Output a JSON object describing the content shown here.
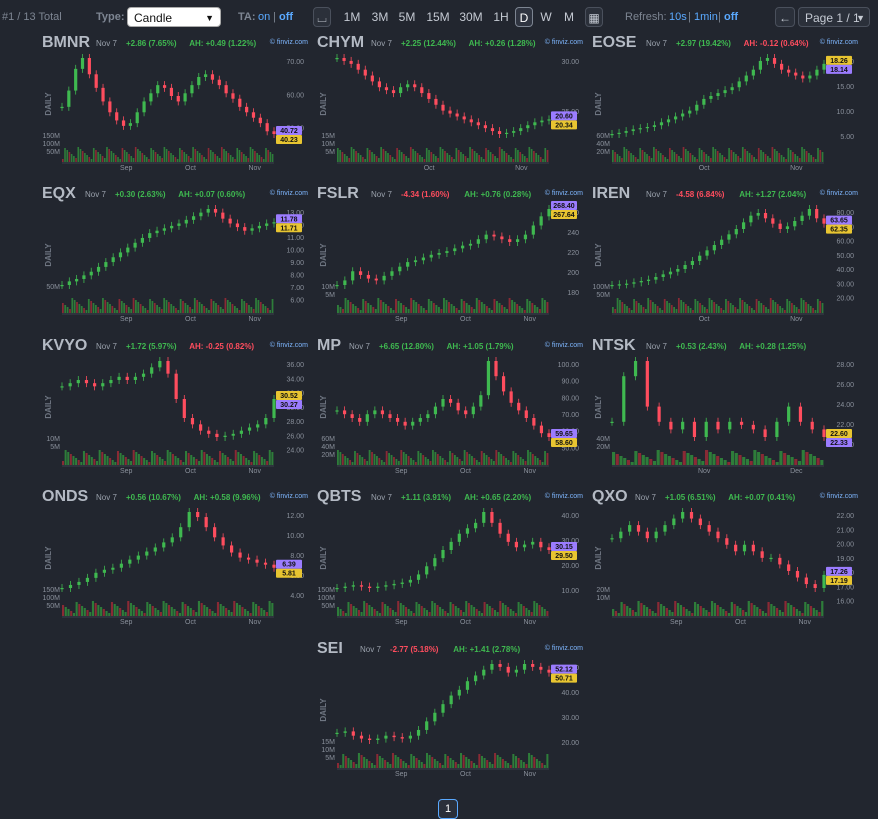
{
  "toolbar": {
    "total": "#1 / 13 Total",
    "type_label": "Type:",
    "type_value": "Candle",
    "ta_label": "TA:",
    "ta_on": "on",
    "ta_sep": "|",
    "ta_off": "off",
    "timeframes": [
      "1M",
      "3M",
      "5M",
      "15M",
      "30M",
      "1H",
      "D",
      "W",
      "M"
    ],
    "active_timeframe": "D",
    "refresh_label": "Refresh:",
    "refresh_opts": [
      "10s",
      "1min",
      "off"
    ],
    "page": "Page 1 / 1"
  },
  "colors": {
    "up": "#3fb950",
    "down": "#ff4d5e",
    "accent": "#5aa9ff",
    "bg": "#22262f",
    "grid": "#3a404b"
  },
  "icons": {
    "chart_toggle": "candle-toggle-icon",
    "calendar": "calendar-icon",
    "back": "arrow-left-icon",
    "dropdown": "chevron-down-icon"
  },
  "charts": [
    {
      "ticker": "BMNR",
      "date": "Nov 7",
      "change": "+2.86 (7.65%)",
      "change_dir": "up",
      "ah": "AH: +0.49 (1.22%)",
      "ah_dir": "up",
      "source": "© finviz.com",
      "ylabels": [
        "70.00",
        "60.00",
        "50.00"
      ],
      "vol_labels": [
        "150M",
        "100M",
        "50M"
      ],
      "price_tags": [
        {
          "text": "40.72",
          "color": "#9b7cff"
        },
        {
          "text": "40.23",
          "color": "#e8c531"
        }
      ],
      "xlabels": [
        "Sep",
        "Oct",
        "Nov"
      ],
      "series": [
        50,
        56,
        64,
        68,
        62,
        57,
        52,
        48,
        45,
        43,
        44,
        48,
        52,
        55,
        58,
        57,
        54,
        52,
        55,
        58,
        61,
        62,
        60,
        58,
        55,
        53,
        50,
        48,
        46,
        44,
        41,
        40
      ]
    },
    {
      "ticker": "CHYM",
      "date": "Nov 7",
      "change": "+2.25 (12.44%)",
      "change_dir": "up",
      "ah": "AH: +0.26 (1.28%)",
      "ah_dir": "up",
      "source": "© finviz.com",
      "ylabels": [
        "30.00",
        "25.00"
      ],
      "vol_labels": [
        "15M",
        "10M",
        "5M"
      ],
      "price_tags": [
        {
          "text": "20.60",
          "color": "#9b7cff"
        },
        {
          "text": "20.34",
          "color": "#e8c531"
        }
      ],
      "xlabels": [
        "Oct",
        "Nov"
      ],
      "series": [
        31,
        30.5,
        30,
        29,
        28,
        27,
        26,
        25.5,
        25,
        26,
        26.5,
        26,
        25,
        24,
        23,
        22,
        21.5,
        21,
        20.5,
        20,
        19.5,
        19,
        18.5,
        18,
        18.2,
        18.5,
        19,
        19.5,
        20,
        20.3,
        20.5
      ]
    },
    {
      "ticker": "EOSE",
      "date": "Nov 7",
      "change": "+2.97 (19.42%)",
      "change_dir": "up",
      "ah": "AH: -0.12 (0.64%)",
      "ah_dir": "down",
      "source": "© finviz.com",
      "ylabels": [
        "20.00",
        "15.00",
        "10.00",
        "5.00"
      ],
      "vol_labels": [
        "60M",
        "40M",
        "20M"
      ],
      "price_tags": [
        {
          "text": "18.26",
          "color": "#e8c531"
        },
        {
          "text": "18.14",
          "color": "#9b7cff"
        }
      ],
      "xlabels": [
        "Oct",
        "Nov"
      ],
      "series": [
        6,
        6.2,
        6.5,
        6.8,
        7,
        7.2,
        7.5,
        8,
        8.5,
        9,
        9.5,
        10,
        11,
        12,
        12.5,
        13,
        13.5,
        14,
        15,
        16,
        17,
        18.5,
        19,
        18,
        17,
        16.5,
        16,
        15.5,
        16,
        17,
        18
      ]
    },
    {
      "ticker": "EQX",
      "date": "Nov 7",
      "change": "+0.30 (2.63%)",
      "change_dir": "up",
      "ah": "AH: +0.07 (0.60%)",
      "ah_dir": "up",
      "source": "© finviz.com",
      "ylabels": [
        "13.00",
        "12.00",
        "11.00",
        "10.00",
        "9.00",
        "8.00",
        "7.00",
        "6.00"
      ],
      "vol_labels": [
        "50M"
      ],
      "price_tags": [
        {
          "text": "11.78",
          "color": "#9b7cff"
        },
        {
          "text": "11.71",
          "color": "#e8c531"
        }
      ],
      "xlabels": [
        "Sep",
        "Oct",
        "Nov"
      ],
      "series": [
        6.5,
        6.8,
        7,
        7.3,
        7.6,
        8,
        8.4,
        8.8,
        9.2,
        9.6,
        10,
        10.4,
        10.8,
        11,
        11.2,
        11.4,
        11.6,
        11.9,
        12.2,
        12.5,
        12.8,
        12.5,
        12,
        11.6,
        11.3,
        11,
        11.2,
        11.4,
        11.6,
        11.7
      ]
    },
    {
      "ticker": "FSLR",
      "date": "Nov 7",
      "change": "-4.34 (1.60%)",
      "change_dir": "down",
      "ah": "AH: +0.76 (0.28%)",
      "ah_dir": "up",
      "source": "© finviz.com",
      "ylabels": [
        "260",
        "240",
        "220",
        "200",
        "180"
      ],
      "vol_labels": [
        "10M",
        "5M"
      ],
      "price_tags": [
        {
          "text": "268.40",
          "color": "#9b7cff"
        },
        {
          "text": "267.64",
          "color": "#e8c531"
        }
      ],
      "xlabels": [
        "Sep",
        "Oct",
        "Nov"
      ],
      "series": [
        185,
        190,
        200,
        196,
        192,
        190,
        195,
        200,
        205,
        210,
        212,
        215,
        218,
        220,
        222,
        225,
        228,
        230,
        235,
        240,
        238,
        235,
        232,
        235,
        240,
        250,
        260,
        268
      ]
    },
    {
      "ticker": "IREN",
      "date": "Nov 7",
      "change": "-4.58 (6.84%)",
      "change_dir": "down",
      "ah": "AH: +1.27 (2.04%)",
      "ah_dir": "up",
      "source": "© finviz.com",
      "ylabels": [
        "80.00",
        "70.00",
        "60.00",
        "50.00",
        "40.00",
        "30.00",
        "20.00"
      ],
      "vol_labels": [
        "100M",
        "50M"
      ],
      "price_tags": [
        {
          "text": "63.65",
          "color": "#9b7cff"
        },
        {
          "text": "62.35",
          "color": "#e8c531"
        }
      ],
      "xlabels": [
        "Oct",
        "Nov"
      ],
      "series": [
        18,
        18.5,
        19,
        20,
        21,
        22,
        24,
        26,
        28,
        30,
        33,
        36,
        40,
        44,
        48,
        52,
        56,
        60,
        65,
        70,
        72,
        68,
        64,
        60,
        62,
        66,
        70,
        75,
        68,
        64
      ]
    },
    {
      "ticker": "KVYO",
      "date": "Nov 7",
      "change": "+1.72 (5.97%)",
      "change_dir": "up",
      "ah": "AH: -0.25 (0.82%)",
      "ah_dir": "down",
      "source": "© finviz.com",
      "ylabels": [
        "36.00",
        "34.00",
        "32.00",
        "30.00",
        "28.00",
        "26.00",
        "24.00"
      ],
      "vol_labels": [
        "10M",
        "5M"
      ],
      "price_tags": [
        {
          "text": "30.52",
          "color": "#e8c531"
        },
        {
          "text": "30.27",
          "color": "#9b7cff"
        }
      ],
      "xlabels": [
        "Sep",
        "Oct",
        "Nov"
      ],
      "series": [
        32,
        32.5,
        33,
        32.5,
        32,
        32.5,
        33,
        33.5,
        33,
        33.5,
        34,
        35,
        36,
        34,
        30,
        27,
        26,
        25,
        24.5,
        24,
        24.2,
        24.5,
        25,
        25.5,
        26,
        27,
        30
      ]
    },
    {
      "ticker": "MP",
      "date": "Nov 7",
      "change": "+6.65 (12.80%)",
      "change_dir": "up",
      "ah": "AH: +1.05 (1.79%)",
      "ah_dir": "up",
      "source": "© finviz.com",
      "ylabels": [
        "100.00",
        "90.00",
        "80.00",
        "70.00",
        "60.00",
        "50.00"
      ],
      "vol_labels": [
        "60M",
        "40M",
        "20M"
      ],
      "price_tags": [
        {
          "text": "59.65",
          "color": "#9b7cff"
        },
        {
          "text": "58.60",
          "color": "#e8c531"
        }
      ],
      "xlabels": [
        "Sep",
        "Oct",
        "Nov"
      ],
      "series": [
        72,
        70,
        68,
        66,
        70,
        72,
        70,
        68,
        66,
        64,
        66,
        68,
        70,
        74,
        78,
        76,
        72,
        70,
        74,
        80,
        98,
        90,
        82,
        76,
        72,
        68,
        64,
        60,
        58
      ]
    },
    {
      "ticker": "NTSK",
      "date": "Nov 7",
      "change": "+0.53 (2.43%)",
      "change_dir": "up",
      "ah": "AH: +0.28 (1.25%)",
      "ah_dir": "up",
      "source": "",
      "ylabels": [
        "28.00",
        "26.00",
        "24.00",
        "22.00",
        "20.00"
      ],
      "vol_labels": [
        "40M",
        "20M"
      ],
      "price_tags": [
        {
          "text": "22.60",
          "color": "#e8c531"
        },
        {
          "text": "22.33",
          "color": "#9b7cff"
        }
      ],
      "xlabels": [
        "Nov",
        "Dec"
      ],
      "series": [
        23,
        26,
        27,
        24,
        23,
        22.5,
        23,
        22,
        23,
        22.5,
        23,
        22.8,
        22.5,
        22,
        23,
        24,
        23,
        22.5,
        22
      ]
    },
    {
      "ticker": "ONDS",
      "date": "Nov 7",
      "change": "+0.56 (10.67%)",
      "change_dir": "up",
      "ah": "AH: +0.58 (9.96%)",
      "ah_dir": "up",
      "source": "© finviz.com",
      "ylabels": [
        "12.00",
        "10.00",
        "8.00",
        "6.00",
        "4.00"
      ],
      "vol_labels": [
        "150M",
        "100M",
        "50M"
      ],
      "price_tags": [
        {
          "text": "6.39",
          "color": "#9b7cff"
        },
        {
          "text": "5.81",
          "color": "#e8c531"
        }
      ],
      "xlabels": [
        "Sep",
        "Oct",
        "Nov"
      ],
      "series": [
        4,
        4.3,
        4.6,
        5,
        5.5,
        5.8,
        6,
        6.4,
        6.8,
        7.2,
        7.6,
        8,
        8.5,
        9,
        10,
        11.5,
        11,
        10,
        9,
        8.2,
        7.5,
        7,
        6.8,
        6.5,
        6.3,
        6
      ]
    },
    {
      "ticker": "QBTS",
      "date": "Nov 7",
      "change": "+1.11 (3.91%)",
      "change_dir": "up",
      "ah": "AH: +0.65 (2.20%)",
      "ah_dir": "up",
      "source": "© finviz.com",
      "ylabels": [
        "40.00",
        "30.00",
        "20.00",
        "10.00"
      ],
      "vol_labels": [
        "150M",
        "100M",
        "50M"
      ],
      "price_tags": [
        {
          "text": "30.15",
          "color": "#9b7cff"
        },
        {
          "text": "29.50",
          "color": "#e8c531"
        }
      ],
      "xlabels": [
        "Sep",
        "Oct",
        "Nov"
      ],
      "series": [
        16,
        16.5,
        17,
        16.5,
        16,
        16.5,
        17,
        17.5,
        18,
        19,
        21,
        24,
        27,
        30,
        33,
        36,
        38,
        40,
        44,
        40,
        36,
        33,
        31,
        32,
        33,
        31,
        30
      ]
    },
    {
      "ticker": "QXO",
      "date": "Nov 7",
      "change": "+1.05 (6.51%)",
      "change_dir": "up",
      "ah": "AH: +0.07 (0.41%)",
      "ah_dir": "up",
      "source": "© finviz.com",
      "ylabels": [
        "22.00",
        "21.00",
        "20.00",
        "19.00",
        "18.00",
        "17.00",
        "16.00"
      ],
      "vol_labels": [
        "20M",
        "10M"
      ],
      "price_tags": [
        {
          "text": "17.26",
          "color": "#9b7cff"
        },
        {
          "text": "17.19",
          "color": "#e8c531"
        }
      ],
      "xlabels": [
        "Sep",
        "Oct",
        "Nov"
      ],
      "series": [
        20,
        20.5,
        21,
        20.5,
        20,
        20.5,
        21,
        21.5,
        22,
        21.5,
        21,
        20.5,
        20,
        19.5,
        19,
        19.5,
        19,
        18.5,
        18.5,
        18,
        17.5,
        17,
        16.5,
        16.2,
        17.2
      ]
    },
    {
      "ticker": "SEI",
      "date": "Nov 7",
      "change": "-2.77 (5.18%)",
      "change_dir": "down",
      "ah": "AH: +1.41 (2.78%)",
      "ah_dir": "up",
      "source": "© finviz.com",
      "ylabels": [
        "50.00",
        "40.00",
        "30.00",
        "20.00"
      ],
      "vol_labels": [
        "15M",
        "10M",
        "5M"
      ],
      "price_tags": [
        {
          "text": "52.12",
          "color": "#9b7cff"
        },
        {
          "text": "50.71",
          "color": "#e8c531"
        }
      ],
      "xlabels": [
        "Sep",
        "Oct",
        "Nov"
      ],
      "series": [
        30,
        30.5,
        29,
        28,
        27.5,
        28,
        29,
        28.5,
        28,
        29,
        31,
        34,
        37,
        40,
        43,
        45,
        48,
        50,
        52,
        54,
        53,
        51,
        52,
        54,
        53,
        52,
        51
      ]
    }
  ],
  "pager": "1"
}
